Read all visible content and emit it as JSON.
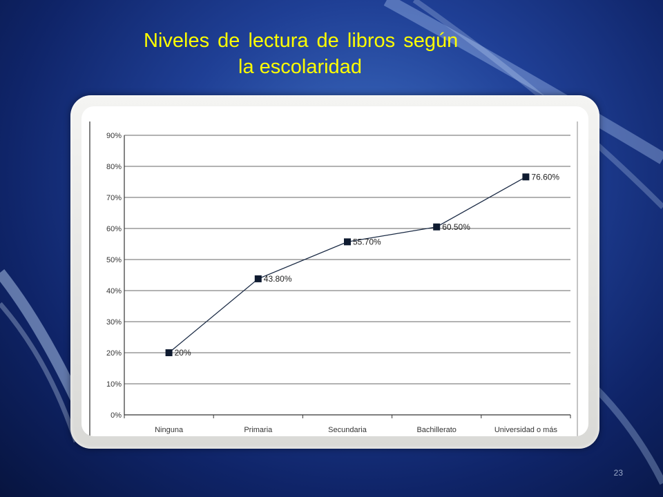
{
  "slide": {
    "title_line1": "Niveles de lectura de libros según",
    "title_line2": "la escolaridad",
    "page_number": "23"
  },
  "chart_data": {
    "type": "line",
    "title": "",
    "xlabel": "",
    "ylabel": "",
    "categories": [
      "Ninguna",
      "Primaria",
      "Secundaria",
      "Bachillerato",
      "Universidad o más"
    ],
    "series": [
      {
        "values": [
          20,
          43.8,
          55.7,
          60.5,
          76.6
        ]
      }
    ],
    "data_labels": [
      "20%",
      "43.80%",
      "55.70%",
      "60.50%",
      "76.60%"
    ],
    "y_ticks": [
      "0%",
      "10%",
      "20%",
      "30%",
      "40%",
      "50%",
      "60%",
      "70%",
      "80%",
      "90%"
    ],
    "ylim": [
      0,
      90
    ],
    "grid": true,
    "legend": "none",
    "colors": {
      "line": "#1a2a44",
      "marker": "#0f1b30",
      "grid": "#666666"
    }
  }
}
